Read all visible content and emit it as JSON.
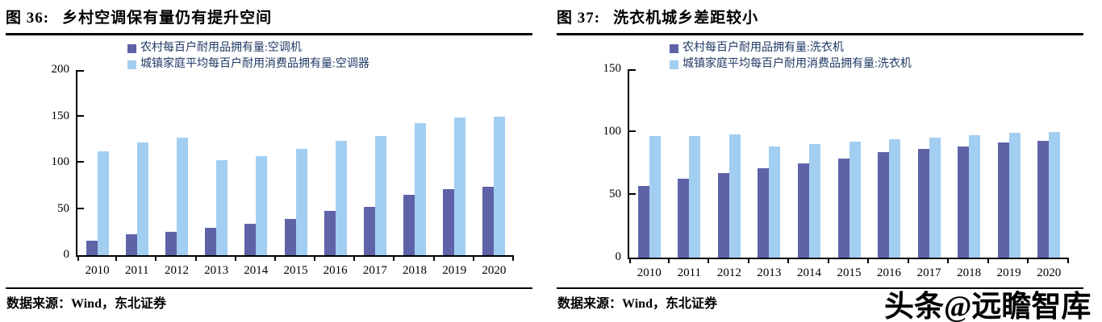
{
  "watermark": "头条@远瞻智库",
  "chart_data": [
    {
      "type": "bar",
      "fig_label": "图 36:",
      "title": "乡村空调保有量仍有提升空间",
      "source_prefix": "数据来源：",
      "source": "Wind，东北证券",
      "categories": [
        "2010",
        "2011",
        "2012",
        "2013",
        "2014",
        "2015",
        "2016",
        "2017",
        "2018",
        "2019",
        "2020"
      ],
      "series": [
        {
          "name": "农村每百户耐用品拥有量:空调机",
          "color": "#5E63A8",
          "values": [
            16.0,
            22.6,
            25.4,
            29.9,
            34.2,
            38.8,
            47.6,
            52.6,
            65.2,
            71.3,
            73.8
          ]
        },
        {
          "name": "城镇家庭平均每百户耐用消费品拥有量:空调器",
          "color": "#A2CEF2",
          "values": [
            112.1,
            122.0,
            126.8,
            102.2,
            107.4,
            114.6,
            123.7,
            128.6,
            142.2,
            148.3,
            149.6
          ]
        }
      ],
      "ylim": [
        0,
        200
      ],
      "yticks": [
        0,
        50,
        100,
        150,
        200
      ],
      "legend_position": "top",
      "grid": false
    },
    {
      "type": "bar",
      "fig_label": "图 37:",
      "title": "洗衣机城乡差距较小",
      "source_prefix": "数据来源：",
      "source": "Wind，东北证券",
      "categories": [
        "2010",
        "2011",
        "2012",
        "2013",
        "2014",
        "2015",
        "2016",
        "2017",
        "2018",
        "2019",
        "2020"
      ],
      "series": [
        {
          "name": "农村每百户耐用品拥有量:洗衣机",
          "color": "#5E63A8",
          "values": [
            57.3,
            62.8,
            67.2,
            71.2,
            74.8,
            78.8,
            84.0,
            86.3,
            88.5,
            91.6,
            92.8
          ]
        },
        {
          "name": "城镇家庭平均每百户耐用消费品拥有量:洗衣机",
          "color": "#A2CEF2",
          "values": [
            96.9,
            97.1,
            98.0,
            88.3,
            90.7,
            92.3,
            94.2,
            95.7,
            97.7,
            99.2,
            100.1
          ]
        }
      ],
      "ylim": [
        0,
        150
      ],
      "yticks": [
        0,
        50,
        100,
        150
      ],
      "legend_position": "top",
      "grid": false
    }
  ]
}
